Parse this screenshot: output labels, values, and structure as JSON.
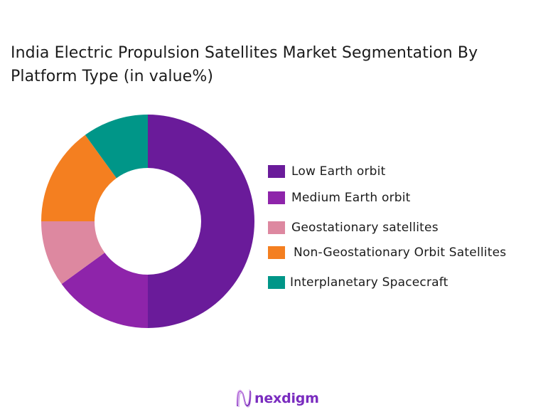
{
  "title": {
    "line1": "India Electric Propulsion Satellites Market Segmentation By",
    "line2": "Platform Type (in value%)"
  },
  "chart_data": {
    "type": "pie",
    "variant": "donut",
    "title": "India Electric Propulsion Satellites Market Segmentation By Platform Type (in value%)",
    "categories": [
      "Low Earth orbit",
      "Medium Earth orbit",
      "Geostationary satellites",
      "Non-Geostationary Orbit Satellites",
      "Interplanetary Spacecraft"
    ],
    "values": [
      50,
      15,
      10,
      15,
      10
    ],
    "colors": [
      "#6a1b9a",
      "#8e24aa",
      "#dd88a0",
      "#f47f20",
      "#009688"
    ],
    "unit": "%",
    "legend_position": "right",
    "start_angle": "12 o'clock, clockwise",
    "data_labels": false
  },
  "legend": {
    "items": [
      {
        "label": "Low Earth orbit",
        "color": "#6a1b9a"
      },
      {
        "label": "Medium Earth orbit",
        "color": "#8e24aa"
      },
      {
        "label": "Geostationary satellites",
        "color": "#dd88a0"
      },
      {
        "label": "Non-Geostationary Orbit Satellites",
        "color": "#f47f20"
      },
      {
        "label": "Interplanetary Spacecraft",
        "color": "#009688"
      }
    ]
  },
  "logo": {
    "text": "nexdigm",
    "icon": "nexdigm-wave-icon",
    "color": "#7a2cbf"
  }
}
